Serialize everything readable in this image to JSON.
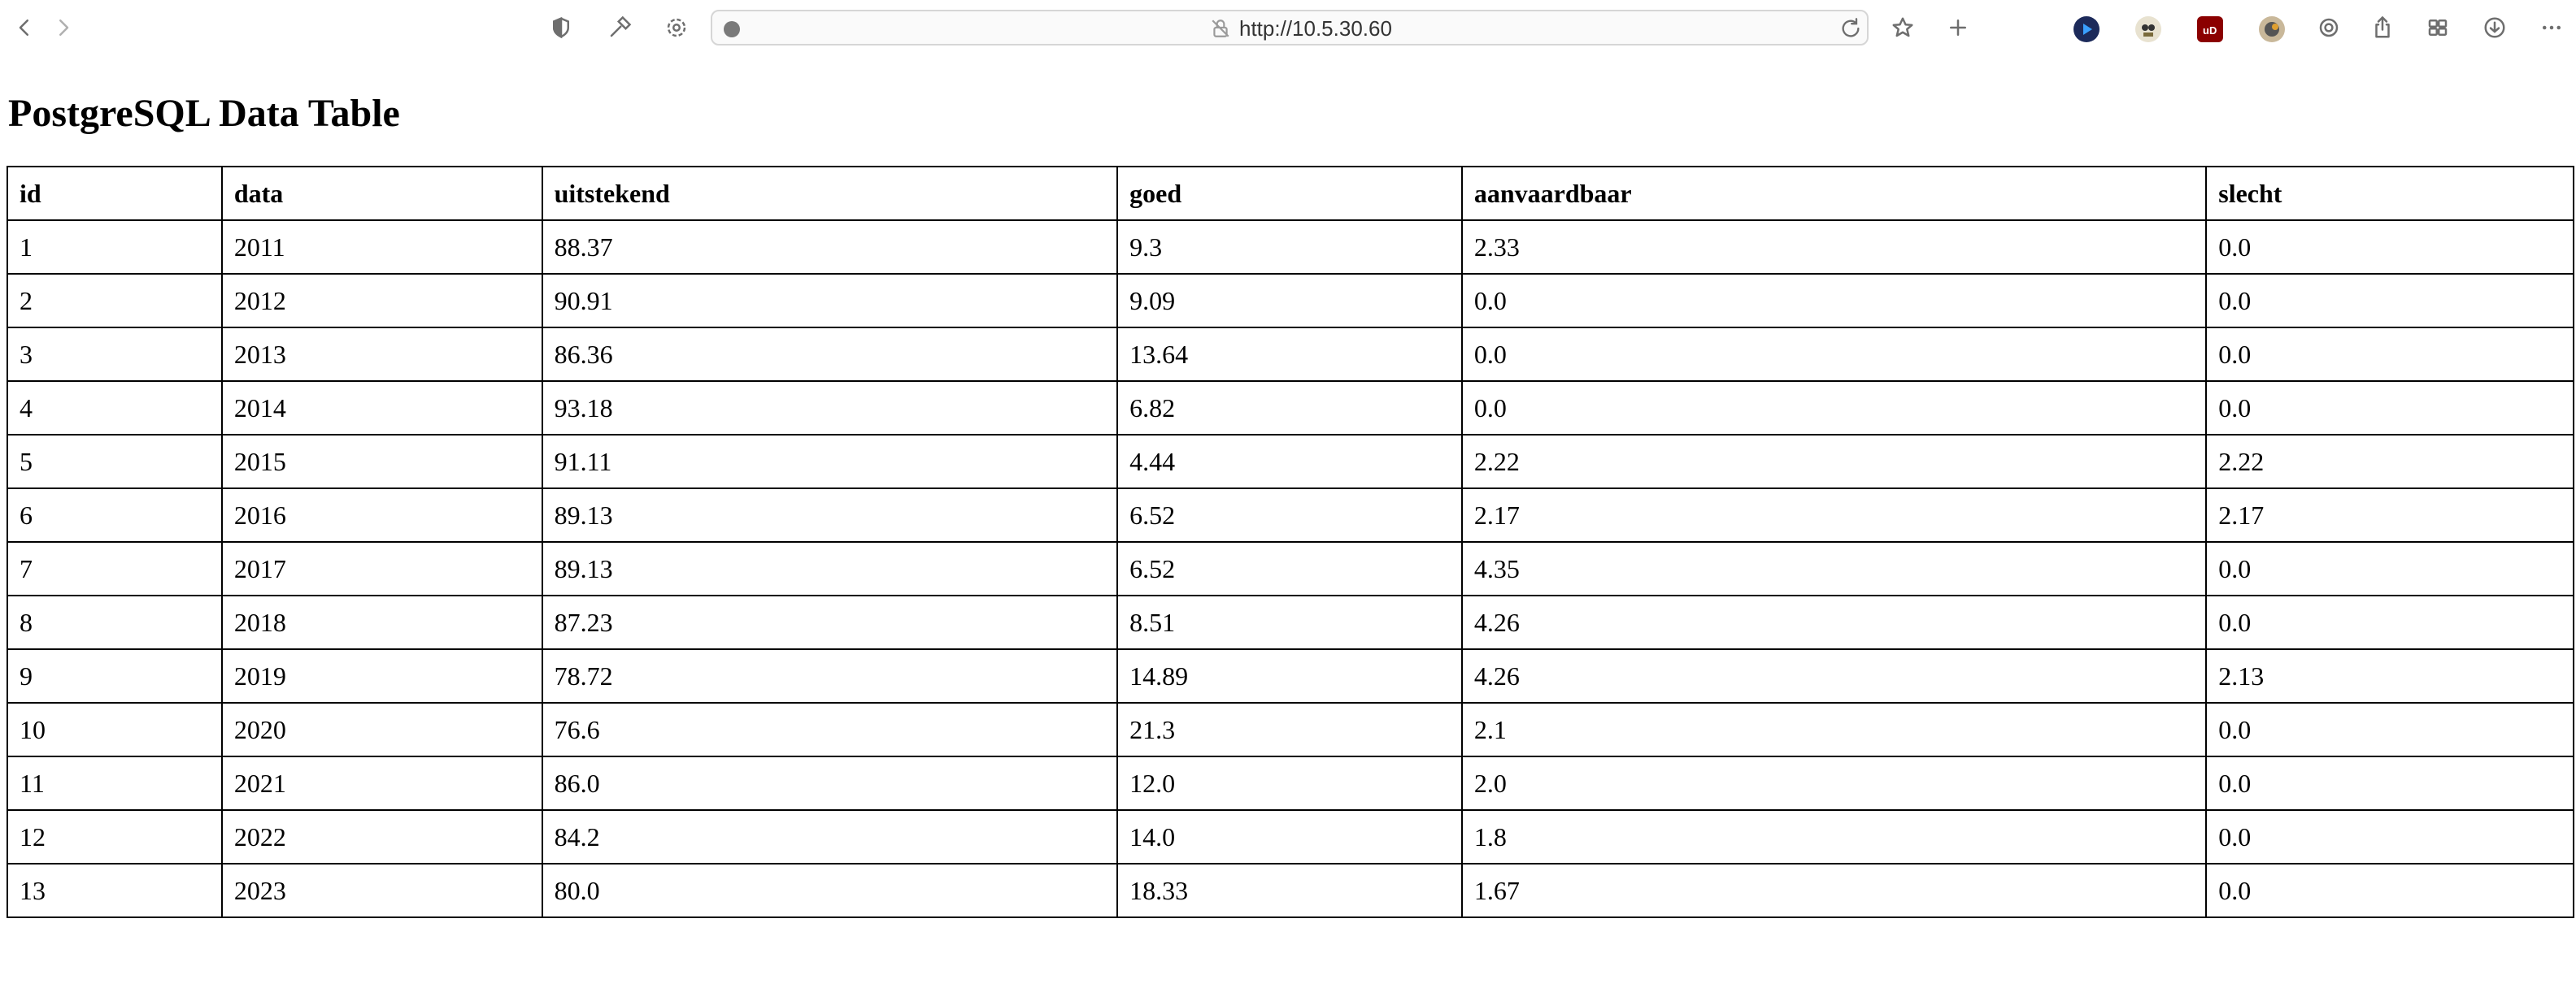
{
  "browser": {
    "url": "http://10.5.30.60",
    "icons": {
      "back": "chevron-left-icon",
      "forward": "chevron-right-icon",
      "sidebar": "shield-half-icon",
      "tools": "hammer-icon",
      "settings": "gear-icon",
      "bookmark": "star-icon",
      "new_tab": "plus-icon",
      "share": "share-icon",
      "tabs": "grid-icon",
      "downloads": "download-icon",
      "more": "ellipsis-icon"
    }
  },
  "page": {
    "title": "PostgreSQL Data Table"
  },
  "table": {
    "headers": [
      "id",
      "data",
      "uitstekend",
      "goed",
      "aanvaardbaar",
      "slecht"
    ],
    "rows": [
      [
        "1",
        "2011",
        "88.37",
        "9.3",
        "2.33",
        "0.0"
      ],
      [
        "2",
        "2012",
        "90.91",
        "9.09",
        "0.0",
        "0.0"
      ],
      [
        "3",
        "2013",
        "86.36",
        "13.64",
        "0.0",
        "0.0"
      ],
      [
        "4",
        "2014",
        "93.18",
        "6.82",
        "0.0",
        "0.0"
      ],
      [
        "5",
        "2015",
        "91.11",
        "4.44",
        "2.22",
        "2.22"
      ],
      [
        "6",
        "2016",
        "89.13",
        "6.52",
        "2.17",
        "2.17"
      ],
      [
        "7",
        "2017",
        "89.13",
        "6.52",
        "4.35",
        "0.0"
      ],
      [
        "8",
        "2018",
        "87.23",
        "8.51",
        "4.26",
        "0.0"
      ],
      [
        "9",
        "2019",
        "78.72",
        "14.89",
        "4.26",
        "2.13"
      ],
      [
        "10",
        "2020",
        "76.6",
        "21.3",
        "2.1",
        "0.0"
      ],
      [
        "11",
        "2021",
        "86.0",
        "12.0",
        "2.0",
        "0.0"
      ],
      [
        "12",
        "2022",
        "84.2",
        "14.0",
        "1.8",
        "0.0"
      ],
      [
        "13",
        "2023",
        "80.0",
        "18.33",
        "1.67",
        "0.0"
      ]
    ]
  }
}
